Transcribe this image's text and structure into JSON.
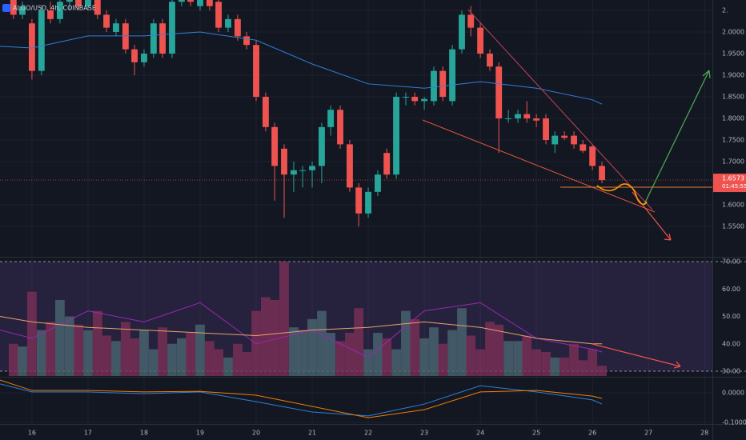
{
  "chart_data": [
    {
      "type": "candlestick",
      "title": "ALGO/USD, 4h, COINBASE",
      "up_color": "#26a69a",
      "down_color": "#ef5350",
      "last_price": 1.6573,
      "countdown": "01:45:55",
      "xlim": [
        15.43,
        28.14
      ],
      "xticks": [
        16,
        17,
        18,
        19,
        20,
        21,
        22,
        23,
        24,
        25,
        26,
        27,
        28
      ],
      "ylim": [
        1.4815,
        2.0741
      ],
      "yticks": [
        {
          "value": 1.55,
          "label": "1.5500"
        },
        {
          "value": 1.6,
          "label": "1.6000"
        },
        {
          "value": 1.7,
          "label": "1.7000"
        },
        {
          "value": 1.75,
          "label": "1.7500"
        },
        {
          "value": 1.8,
          "label": "1.8000"
        },
        {
          "value": 1.85,
          "label": "1.8500"
        },
        {
          "value": 1.9,
          "label": "1.9000"
        },
        {
          "value": 1.95,
          "label": "1.9500"
        },
        {
          "value": 2.0,
          "label": "2.0000"
        },
        {
          "value": 2.05,
          "label": "2."
        }
      ],
      "x": [
        15.67,
        15.83,
        16,
        16.17,
        16.33,
        16.5,
        16.67,
        16.83,
        17,
        17.17,
        17.33,
        17.5,
        17.67,
        17.83,
        18,
        18.17,
        18.33,
        18.5,
        18.67,
        18.83,
        19,
        19.17,
        19.33,
        19.5,
        19.67,
        19.83,
        20,
        20.17,
        20.33,
        20.5,
        20.67,
        20.83,
        21,
        21.17,
        21.33,
        21.5,
        21.67,
        21.83,
        22,
        22.17,
        22.33,
        22.5,
        22.67,
        22.83,
        23,
        23.17,
        23.33,
        23.5,
        23.67,
        23.83,
        24,
        24.17,
        24.33,
        24.5,
        24.67,
        24.83,
        25,
        25.17,
        25.33,
        25.5,
        25.67,
        25.83,
        26,
        26.17
      ],
      "open": [
        2.08,
        2.04,
        2.02,
        1.91,
        2.05,
        2.03,
        2.07,
        2.08,
        2.06,
        2.08,
        2.04,
        2.0,
        2.02,
        1.96,
        1.93,
        1.95,
        2.02,
        1.95,
        2.07,
        2.08,
        2.06,
        2.08,
        2.07,
        2.01,
        2.03,
        1.99,
        1.97,
        1.85,
        1.78,
        1.73,
        1.67,
        1.68,
        1.68,
        1.69,
        1.78,
        1.82,
        1.74,
        1.64,
        1.58,
        1.63,
        1.72,
        1.67,
        1.85,
        1.85,
        1.84,
        1.84,
        1.91,
        1.84,
        1.96,
        2.04,
        2.01,
        1.95,
        1.92,
        1.8,
        1.8,
        1.81,
        1.8,
        1.8,
        1.74,
        1.76,
        1.76,
        1.74,
        1.735,
        1.69
      ],
      "high": [
        2.09,
        2.07,
        2.03,
        2.06,
        2.07,
        2.08,
        2.09,
        2.09,
        2.09,
        2.09,
        2.05,
        2.03,
        2.03,
        1.97,
        1.96,
        2.03,
        2.03,
        2.08,
        2.09,
        2.09,
        2.09,
        2.09,
        2.08,
        2.04,
        2.04,
        2.0,
        1.98,
        1.86,
        1.79,
        1.74,
        1.7,
        1.69,
        1.7,
        1.79,
        1.83,
        1.83,
        1.75,
        1.65,
        1.64,
        1.68,
        1.73,
        1.86,
        1.86,
        1.86,
        1.85,
        1.92,
        1.92,
        1.97,
        2.05,
        2.06,
        2.02,
        1.96,
        1.93,
        1.82,
        1.82,
        1.84,
        1.81,
        1.81,
        1.77,
        1.77,
        1.77,
        1.75,
        1.74,
        1.7
      ],
      "low": [
        2.03,
        2.03,
        1.89,
        1.9,
        2.02,
        2.02,
        2.05,
        2.05,
        2.05,
        2.03,
        2.0,
        1.99,
        1.95,
        1.9,
        1.92,
        1.94,
        1.94,
        1.94,
        2.06,
        2.06,
        2.05,
        2.05,
        2.0,
        2.0,
        1.98,
        1.96,
        1.84,
        1.77,
        1.61,
        1.57,
        1.63,
        1.64,
        1.64,
        1.65,
        1.76,
        1.73,
        1.63,
        1.55,
        1.57,
        1.62,
        1.66,
        1.66,
        1.83,
        1.83,
        1.82,
        1.83,
        1.84,
        1.83,
        1.95,
        1.99,
        1.94,
        1.91,
        1.72,
        1.79,
        1.79,
        1.79,
        1.78,
        1.74,
        1.72,
        1.75,
        1.73,
        1.72,
        1.68,
        1.65
      ],
      "close": [
        2.04,
        2.06,
        1.91,
        2.05,
        2.03,
        2.07,
        2.08,
        2.06,
        2.08,
        2.04,
        2.01,
        2.02,
        1.96,
        1.93,
        1.95,
        2.02,
        1.95,
        2.07,
        2.08,
        2.07,
        2.08,
        2.06,
        2.01,
        2.03,
        1.99,
        1.97,
        1.85,
        1.78,
        1.69,
        1.67,
        1.68,
        1.68,
        1.69,
        1.78,
        1.82,
        1.74,
        1.64,
        1.58,
        1.63,
        1.67,
        1.67,
        1.85,
        1.85,
        1.84,
        1.845,
        1.91,
        1.85,
        1.96,
        2.04,
        2.01,
        1.95,
        1.92,
        1.8,
        1.8,
        1.81,
        1.8,
        1.795,
        1.75,
        1.76,
        1.755,
        1.74,
        1.725,
        1.69,
        1.6573
      ],
      "lines": [
        {
          "color": "#2f7fd6",
          "x": [
            15.43,
            16,
            17,
            18,
            19,
            20,
            21,
            22,
            23,
            24,
            25,
            26,
            26.17
          ],
          "values": [
            1.967,
            1.963,
            1.991,
            1.991,
            2.0,
            1.981,
            1.926,
            1.88,
            1.87,
            1.885,
            1.87,
            1.843,
            1.833
          ]
        }
      ]
    },
    {
      "type": "bar",
      "up_color": "#4a6670",
      "down_color": "#7d2f58",
      "ylim": [
        28.25,
        71.17
      ],
      "yticks": [
        {
          "value": 30,
          "label": "30.00"
        },
        {
          "value": 40,
          "label": "40.00"
        },
        {
          "value": 50,
          "label": "50.00"
        },
        {
          "value": 60,
          "label": "60.00"
        },
        {
          "value": 70,
          "label": "70.00"
        }
      ],
      "values": [
        40,
        39,
        59,
        45,
        48,
        56,
        50,
        47,
        45,
        52,
        43,
        41,
        48,
        42,
        45,
        38,
        46,
        40,
        42,
        44,
        47,
        41,
        38,
        35,
        40,
        37,
        52,
        57,
        56,
        70,
        46,
        45,
        49,
        52,
        44,
        41,
        44,
        53,
        38,
        44,
        42,
        38,
        52,
        49,
        42,
        46,
        40,
        45,
        53,
        43,
        38,
        48,
        47,
        41,
        41,
        43,
        38,
        37,
        35,
        35,
        40,
        34,
        38,
        32
      ],
      "lines": [
        {
          "color": "#9c27b0",
          "x": [
            15.43,
            16,
            17,
            18,
            19,
            20,
            21,
            22,
            23,
            24,
            25,
            26,
            26.17
          ],
          "values": [
            45,
            42,
            52,
            48,
            55,
            40,
            45,
            35,
            52,
            55,
            42,
            38,
            37
          ]
        },
        {
          "color": "#e8a268",
          "x": [
            15.43,
            16,
            17,
            18,
            19,
            20,
            21,
            22,
            23,
            24,
            25,
            26,
            26.17
          ],
          "values": [
            50,
            48,
            46,
            45,
            44,
            43,
            45,
            46,
            48,
            46,
            42,
            40,
            40
          ]
        }
      ]
    },
    {
      "type": "line",
      "ylim": [
        -0.1054,
        0.0514
      ],
      "yticks": [
        {
          "value": 0,
          "label": "0.0000"
        },
        {
          "value": -0.1,
          "label": "-0.1000"
        }
      ],
      "lines": [
        {
          "color": "#2f7fd6",
          "x": [
            15.43,
            16,
            17,
            18,
            19,
            20,
            21,
            22,
            23,
            24,
            25,
            26,
            26.17
          ],
          "values": [
            0.03,
            0.003,
            0.003,
            -0.003,
            0.003,
            -0.03,
            -0.065,
            -0.078,
            -0.038,
            0.024,
            0.003,
            -0.024,
            -0.038
          ]
        },
        {
          "color": "#f57c00",
          "x": [
            15.43,
            16,
            17,
            18,
            19,
            20,
            21,
            22,
            23,
            24,
            25,
            26,
            26.17
          ],
          "values": [
            0.043,
            0.008,
            0.008,
            0.003,
            0.005,
            -0.008,
            -0.046,
            -0.084,
            -0.057,
            0.003,
            0.008,
            -0.011,
            -0.019
          ]
        }
      ]
    }
  ]
}
